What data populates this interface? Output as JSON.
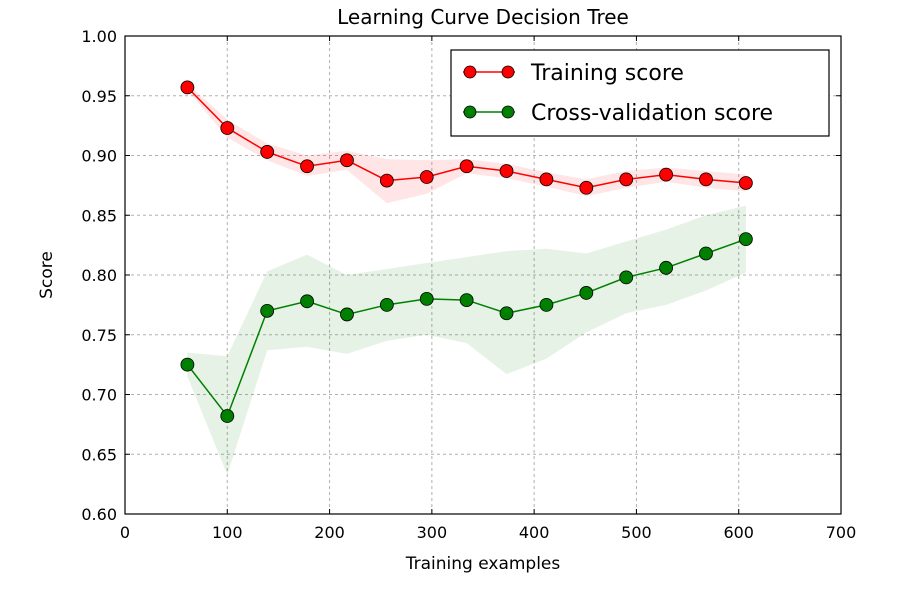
{
  "chart_data": {
    "type": "line",
    "title": "Learning Curve Decision Tree",
    "xlabel": "Training examples",
    "ylabel": "Score",
    "xlim": [
      0,
      700
    ],
    "ylim": [
      0.6,
      1.0
    ],
    "x_ticks": [
      "0",
      "100",
      "200",
      "300",
      "400",
      "500",
      "600",
      "700"
    ],
    "y_ticks": [
      "0.60",
      "0.65",
      "0.70",
      "0.75",
      "0.80",
      "0.85",
      "0.90",
      "0.95",
      "1.00"
    ],
    "grid": true,
    "legend_position": "top-right",
    "x": [
      61,
      100,
      139,
      178,
      217,
      256,
      295,
      334,
      373,
      412,
      451,
      490,
      529,
      568,
      607
    ],
    "series": [
      {
        "name": "Training score",
        "color": "#ff0000",
        "values": [
          0.957,
          0.923,
          0.903,
          0.891,
          0.896,
          0.879,
          0.882,
          0.891,
          0.887,
          0.88,
          0.873,
          0.88,
          0.884,
          0.88,
          0.877
        ],
        "band_upper": [
          0.96,
          0.93,
          0.91,
          0.9,
          0.904,
          0.897,
          0.896,
          0.897,
          0.893,
          0.886,
          0.88,
          0.887,
          0.89,
          0.887,
          0.884
        ],
        "band_lower": [
          0.955,
          0.915,
          0.896,
          0.883,
          0.888,
          0.86,
          0.868,
          0.885,
          0.881,
          0.874,
          0.866,
          0.873,
          0.878,
          0.873,
          0.87
        ]
      },
      {
        "name": "Cross-validation score",
        "color": "#008000",
        "values": [
          0.725,
          0.682,
          0.77,
          0.778,
          0.767,
          0.775,
          0.78,
          0.779,
          0.768,
          0.775,
          0.785,
          0.798,
          0.806,
          0.818,
          0.83
        ],
        "band_upper": [
          0.735,
          0.732,
          0.803,
          0.817,
          0.8,
          0.805,
          0.81,
          0.815,
          0.82,
          0.822,
          0.818,
          0.828,
          0.838,
          0.85,
          0.858
        ],
        "band_lower": [
          0.715,
          0.633,
          0.737,
          0.74,
          0.734,
          0.745,
          0.75,
          0.743,
          0.717,
          0.73,
          0.752,
          0.768,
          0.775,
          0.787,
          0.802
        ]
      }
    ]
  }
}
